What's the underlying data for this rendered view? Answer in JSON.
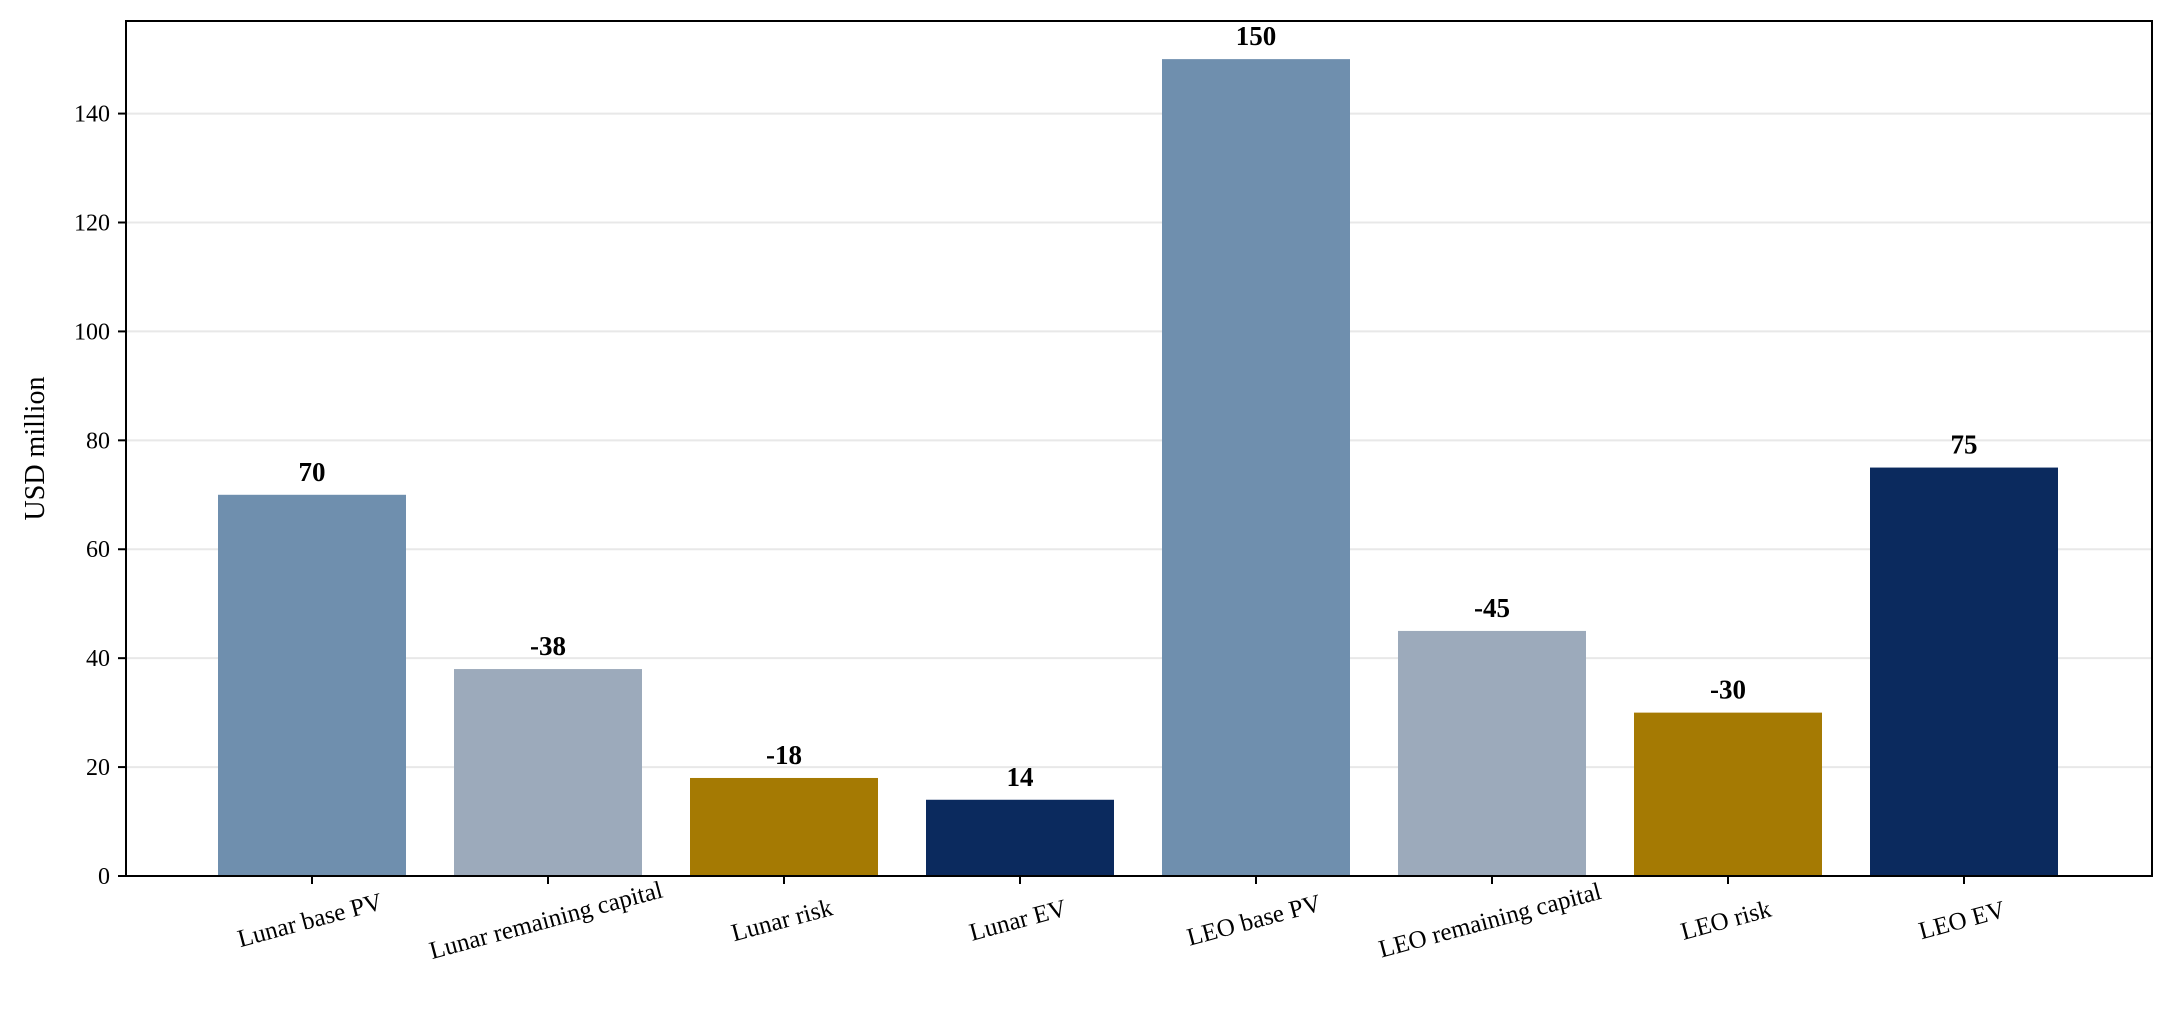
{
  "chart_data": {
    "type": "bar",
    "title": "",
    "xlabel": "",
    "ylabel": "USD million",
    "ylim": [
      0,
      157
    ],
    "yticks": [
      0,
      20,
      40,
      60,
      80,
      100,
      120,
      140
    ],
    "grid": "horizontal",
    "categories": [
      "Lunar base PV",
      "Lunar remaining capital",
      "Lunar risk",
      "Lunar EV",
      "LEO base PV",
      "LEO remaining capital",
      "LEO risk",
      "LEO EV"
    ],
    "values": [
      70,
      38,
      18,
      14,
      150,
      45,
      30,
      75
    ],
    "data_labels": [
      "70",
      "-38",
      "-18",
      "14",
      "150",
      "-45",
      "-30",
      "75"
    ],
    "bar_colors": [
      "#6f8fae",
      "#9caabb",
      "#a57a03",
      "#0b2a5e",
      "#6f8fae",
      "#9caabb",
      "#a57a03",
      "#0b2a5e"
    ]
  }
}
